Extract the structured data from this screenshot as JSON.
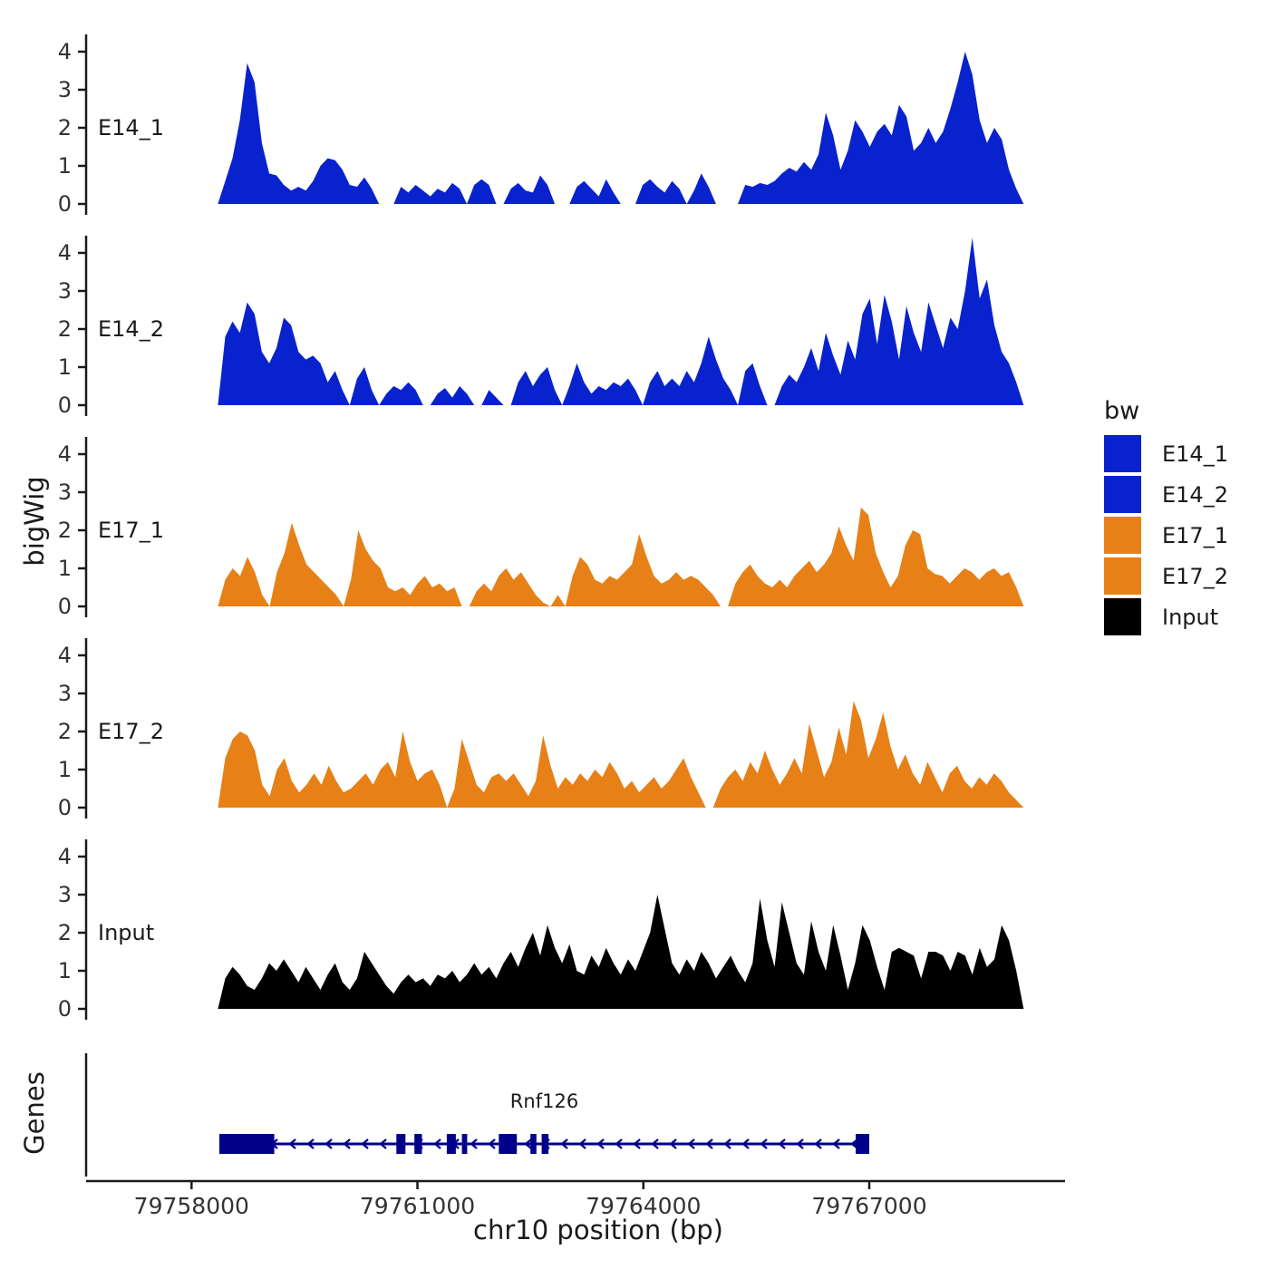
{
  "figure": {
    "ylabel": "bigWig",
    "genes_label": "Genes",
    "xlabel": "chr10 position (bp)"
  },
  "legend": {
    "title": "bw",
    "items": [
      {
        "label": "E14_1",
        "color": "#0822CE"
      },
      {
        "label": "E14_2",
        "color": "#0822CE"
      },
      {
        "label": "E17_1",
        "color": "#E68017"
      },
      {
        "label": "E17_2",
        "color": "#E68017"
      },
      {
        "label": "Input",
        "color": "#000000"
      }
    ]
  },
  "chart_data": {
    "type": "area",
    "title": "",
    "xlabel": "chr10 position (bp)",
    "ylabel": "bigWig",
    "x_domain": [
      79756600,
      79769600
    ],
    "x_ticks": [
      79758000,
      79761000,
      79764000,
      79767000
    ],
    "y_ticks": [
      0,
      1,
      2,
      3,
      4
    ],
    "y_domain": [
      0,
      4.6
    ],
    "data_x_range": [
      79758350,
      79769050
    ],
    "tracks": [
      {
        "name": "E14_1",
        "color": "#0822CE",
        "values": [
          0,
          0.6,
          1.2,
          2.2,
          3.7,
          3.2,
          1.6,
          0.8,
          0.75,
          0.5,
          0.35,
          0.45,
          0.35,
          0.6,
          1,
          1.2,
          1.15,
          0.9,
          0.5,
          0.45,
          0.7,
          0.4,
          0,
          0,
          0,
          0.45,
          0.3,
          0.5,
          0.35,
          0.2,
          0.4,
          0.3,
          0.55,
          0.4,
          0,
          0.5,
          0.65,
          0.5,
          0,
          0,
          0.4,
          0.55,
          0.35,
          0.3,
          0.75,
          0.5,
          0,
          0,
          0,
          0.45,
          0.6,
          0.4,
          0.2,
          0.65,
          0.3,
          0,
          0,
          0,
          0.5,
          0.65,
          0.45,
          0.3,
          0.6,
          0.4,
          0,
          0.35,
          0.8,
          0.45,
          0,
          0,
          0,
          0,
          0.5,
          0.45,
          0.55,
          0.5,
          0.6,
          0.8,
          0.95,
          0.85,
          1.1,
          0.9,
          1.3,
          2.4,
          1.8,
          0.9,
          1.4,
          2.2,
          1.9,
          1.5,
          1.9,
          2.1,
          1.8,
          2.6,
          2.3,
          1.4,
          1.6,
          2,
          1.6,
          1.9,
          2.5,
          3.2,
          4,
          3.4,
          2.2,
          1.6,
          2,
          1.7,
          0.9,
          0.4,
          0
        ]
      },
      {
        "name": "E14_2",
        "color": "#0822CE",
        "values": [
          0,
          1.8,
          2.2,
          1.9,
          2.7,
          2.4,
          1.4,
          1.1,
          1.5,
          2.3,
          2.1,
          1.4,
          1.2,
          1.3,
          1.1,
          0.6,
          0.9,
          0.4,
          0,
          0.7,
          1,
          0.4,
          0,
          0.3,
          0.5,
          0.4,
          0.6,
          0.4,
          0,
          0,
          0.3,
          0.45,
          0.2,
          0.5,
          0.3,
          0,
          0,
          0.4,
          0.2,
          0,
          0,
          0.6,
          0.9,
          0.5,
          0.8,
          1,
          0.4,
          0,
          0.5,
          1.1,
          0.6,
          0.3,
          0.5,
          0.4,
          0.6,
          0.5,
          0.7,
          0.4,
          0,
          0.6,
          0.9,
          0.5,
          0.7,
          0.5,
          0.9,
          0.6,
          1.1,
          1.8,
          1.2,
          0.7,
          0.4,
          0,
          0.9,
          1.1,
          0.5,
          0,
          0,
          0.5,
          0.8,
          0.6,
          1,
          1.5,
          0.9,
          1.9,
          1.3,
          0.8,
          1.7,
          1.2,
          2.4,
          2.8,
          1.6,
          2.9,
          2.2,
          1.2,
          2.6,
          1.9,
          1.4,
          2.7,
          2.1,
          1.5,
          2.3,
          2,
          3,
          4.4,
          2.8,
          3.3,
          2.1,
          1.4,
          1.1,
          0.6,
          0
        ]
      },
      {
        "name": "E17_1",
        "color": "#E68017",
        "values": [
          0,
          0.7,
          1,
          0.8,
          1.3,
          0.9,
          0.3,
          0,
          0.9,
          1.4,
          2.2,
          1.6,
          1.1,
          0.9,
          0.7,
          0.5,
          0.3,
          0,
          0.7,
          2,
          1.5,
          1.2,
          1,
          0.5,
          0.4,
          0.5,
          0.3,
          0.6,
          0.8,
          0.5,
          0.6,
          0.4,
          0.5,
          0,
          0,
          0.4,
          0.6,
          0.4,
          0.8,
          1,
          0.7,
          0.9,
          0.6,
          0.3,
          0.1,
          0,
          0.3,
          0,
          0.8,
          1.3,
          1.1,
          0.7,
          0.6,
          0.8,
          0.7,
          0.9,
          1.1,
          1.9,
          1.3,
          0.8,
          0.6,
          0.7,
          0.9,
          0.7,
          0.8,
          0.7,
          0.5,
          0.3,
          0,
          0,
          0.6,
          0.9,
          1.1,
          0.8,
          0.6,
          0.5,
          0.7,
          0.5,
          0.8,
          1,
          1.2,
          0.9,
          1.1,
          1.4,
          2.1,
          1.6,
          1.2,
          2.6,
          2.4,
          1.4,
          0.9,
          0.5,
          0.8,
          1.6,
          2,
          1.9,
          1,
          0.85,
          0.8,
          0.6,
          0.8,
          1,
          0.9,
          0.7,
          0.9,
          1,
          0.8,
          0.9,
          0.5,
          0
        ]
      },
      {
        "name": "E17_2",
        "color": "#E68017",
        "values": [
          0,
          1.3,
          1.8,
          2,
          1.9,
          1.5,
          0.6,
          0.3,
          1,
          1.3,
          0.7,
          0.4,
          0.6,
          0.9,
          0.6,
          1.1,
          0.7,
          0.4,
          0.5,
          0.7,
          0.9,
          0.6,
          1,
          1.2,
          0.8,
          2,
          1.2,
          0.7,
          0.9,
          1,
          0.6,
          0,
          0.5,
          1.8,
          1.2,
          0.6,
          0.4,
          0.8,
          0.9,
          0.7,
          0.9,
          0.6,
          0.3,
          0.7,
          1.9,
          1.1,
          0.5,
          0.8,
          0.6,
          0.9,
          0.7,
          1,
          0.8,
          1.2,
          0.9,
          0.5,
          0.7,
          0.4,
          0.6,
          0.8,
          0.5,
          0.7,
          1,
          1.3,
          0.8,
          0.4,
          0,
          0,
          0.5,
          0.8,
          1,
          0.7,
          1.2,
          0.9,
          1.5,
          1,
          0.6,
          0.9,
          1.3,
          0.9,
          2.2,
          1.5,
          0.8,
          1.2,
          2.1,
          1.4,
          2.8,
          2.3,
          1.3,
          1.8,
          2.5,
          1.6,
          1,
          1.4,
          0.9,
          0.6,
          1.2,
          0.8,
          0.4,
          0.9,
          1.1,
          0.7,
          0.5,
          0.8,
          0.6,
          0.9,
          0.7,
          0.4,
          0.2,
          0
        ]
      },
      {
        "name": "Input",
        "color": "#000000",
        "values": [
          0,
          0.8,
          1.1,
          0.9,
          0.6,
          0.5,
          0.8,
          1.2,
          1,
          1.3,
          1,
          0.7,
          1.1,
          0.8,
          0.5,
          0.9,
          1.2,
          0.7,
          0.5,
          0.8,
          1.5,
          1.2,
          0.9,
          0.6,
          0.4,
          0.7,
          0.9,
          0.7,
          0.8,
          0.6,
          0.9,
          0.8,
          1,
          0.7,
          0.9,
          1.2,
          0.9,
          1.1,
          0.8,
          1.2,
          1.5,
          1.1,
          1.6,
          2,
          1.4,
          2.2,
          1.6,
          1.2,
          1.7,
          1,
          0.9,
          1.4,
          1.1,
          1.6,
          1.2,
          0.9,
          1.3,
          1,
          1.5,
          2,
          3,
          2.1,
          1.2,
          0.9,
          1.3,
          1,
          1.5,
          1.2,
          0.8,
          1.1,
          1.4,
          1,
          0.7,
          1.2,
          2.9,
          1.8,
          1.1,
          2.8,
          2,
          1.2,
          0.9,
          2.3,
          1.5,
          1,
          2.2,
          1.4,
          0.5,
          1.2,
          2.2,
          1.8,
          1.1,
          0.5,
          1.5,
          1.6,
          1.5,
          1.4,
          0.8,
          1.5,
          1.5,
          1.4,
          1,
          1.5,
          1.4,
          0.9,
          1.6,
          1.1,
          1.3,
          2.2,
          1.8,
          1,
          0
        ]
      }
    ],
    "gene_track": {
      "name": "Rnf126",
      "strand": "-",
      "color": "#00008B",
      "start": 79758370,
      "end": 79767000,
      "exons": [
        [
          79758370,
          79759100
        ],
        [
          79760720,
          79760840
        ],
        [
          79760960,
          79761060
        ],
        [
          79761390,
          79761510
        ],
        [
          79761590,
          79761660
        ],
        [
          79762080,
          79762320
        ],
        [
          79762500,
          79762580
        ],
        [
          79762650,
          79762740
        ],
        [
          79766820,
          79767000
        ]
      ]
    }
  }
}
